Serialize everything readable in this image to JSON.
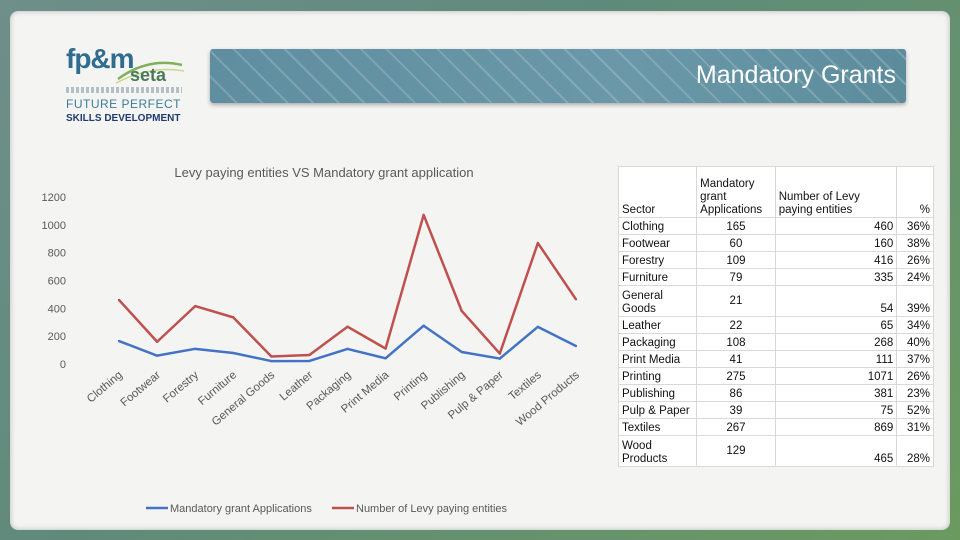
{
  "banner": {
    "title": "Mandatory Grants"
  },
  "logo": {
    "brand": "fp&m",
    "sub": "seta",
    "tagline": "FUTURE PERFECT",
    "tagline2": "SKILLS DEVELOPMENT"
  },
  "colors": {
    "series1": "#4472c4",
    "series2": "#c0504d",
    "banner": "#6a98a8"
  },
  "chart_data": {
    "type": "line",
    "title": "Levy paying entities VS Mandatory grant application",
    "xlabel": "",
    "ylabel": "",
    "ylim": [
      0,
      1200
    ],
    "yticks": [
      "0",
      "200",
      "400",
      "600",
      "800",
      "1000",
      "1200"
    ],
    "categories": [
      "Clothing",
      "Footwear",
      "Forestry",
      "Furniture",
      "General Goods",
      "Leather",
      "Packaging",
      "Print Media",
      "Printing",
      "Publishing",
      "Pulp & Paper",
      "Textiles",
      "Wood Products"
    ],
    "series": [
      {
        "name": "Mandatory grant Applications",
        "values": [
          165,
          60,
          109,
          79,
          21,
          22,
          108,
          41,
          275,
          86,
          39,
          267,
          129
        ]
      },
      {
        "name": "Number of Levy paying entities",
        "values": [
          460,
          160,
          416,
          335,
          54,
          65,
          268,
          111,
          1071,
          381,
          75,
          869,
          465
        ]
      }
    ],
    "grid": false,
    "legend": "bottom"
  },
  "table": {
    "headers": {
      "sector": "Sector",
      "mg1": "Mandatory",
      "mg2": "grant",
      "mg3": "Applications",
      "levy1": "Number of Levy",
      "levy2": "paying entities",
      "pct": "%"
    },
    "rows": [
      {
        "sector": "Clothing",
        "mg": "165",
        "levy": "460",
        "pct": "36%"
      },
      {
        "sector": "Footwear",
        "mg": "60",
        "levy": "160",
        "pct": "38%"
      },
      {
        "sector": "Forestry",
        "mg": "109",
        "levy": "416",
        "pct": "26%"
      },
      {
        "sector": "Furniture",
        "mg": "79",
        "levy": "335",
        "pct": "24%"
      },
      {
        "sector1": "General",
        "sector2": "Goods",
        "mg": "21",
        "levy": "54",
        "pct": "39%"
      },
      {
        "sector": "Leather",
        "mg": "22",
        "levy": "65",
        "pct": "34%"
      },
      {
        "sector": "Packaging",
        "mg": "108",
        "levy": "268",
        "pct": "40%"
      },
      {
        "sector": "Print Media",
        "mg": "41",
        "levy": "111",
        "pct": "37%"
      },
      {
        "sector": "Printing",
        "mg": "275",
        "levy": "1071",
        "pct": "26%"
      },
      {
        "sector": "Publishing",
        "mg": "86",
        "levy": "381",
        "pct": "23%"
      },
      {
        "sector": "Pulp & Paper",
        "mg": "39",
        "levy": "75",
        "pct": "52%"
      },
      {
        "sector": "Textiles",
        "mg": "267",
        "levy": "869",
        "pct": "31%"
      },
      {
        "sector1": "Wood",
        "sector2": "Products",
        "mg": "129",
        "levy": "465",
        "pct": "28%"
      }
    ]
  }
}
